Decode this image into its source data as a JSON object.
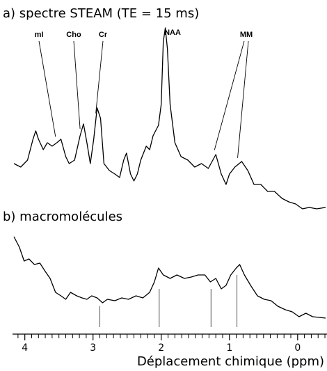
{
  "chart_data": [
    {
      "type": "line",
      "title": "a) spectre STEAM (TE = 15 ms)",
      "x": [
        4.16,
        4.06,
        3.96,
        3.88,
        3.84,
        3.8,
        3.73,
        3.67,
        3.6,
        3.53,
        3.47,
        3.4,
        3.35,
        3.27,
        3.19,
        3.14,
        3.09,
        3.04,
        2.99,
        2.94,
        2.89,
        2.84,
        2.76,
        2.68,
        2.61,
        2.55,
        2.51,
        2.45,
        2.4,
        2.35,
        2.3,
        2.22,
        2.17,
        2.12,
        2.04,
        2.0,
        1.97,
        1.94,
        1.91,
        1.87,
        1.8,
        1.71,
        1.61,
        1.51,
        1.41,
        1.31,
        1.2,
        1.12,
        1.05,
        1.0,
        0.92,
        0.82,
        0.73,
        0.64,
        0.54,
        0.44,
        0.34,
        0.23,
        0.13,
        0.03,
        -0.07,
        -0.17,
        -0.28,
        -0.41
      ],
      "values": [
        75,
        70,
        80,
        110,
        122,
        110,
        95,
        105,
        100,
        105,
        110,
        85,
        75,
        80,
        115,
        132,
        105,
        75,
        110,
        155,
        140,
        75,
        65,
        60,
        55,
        80,
        90,
        60,
        50,
        60,
        80,
        100,
        95,
        115,
        130,
        160,
        250,
        270,
        240,
        160,
        105,
        85,
        80,
        70,
        75,
        68,
        88,
        60,
        45,
        60,
        70,
        78,
        65,
        45,
        45,
        35,
        35,
        25,
        20,
        17,
        10,
        12,
        10,
        12
      ],
      "color": "#000000",
      "xlim": [
        4.16,
        -0.41
      ],
      "ylim": [
        0,
        270
      ],
      "annotations": [
        {
          "text": "mI",
          "x": [
            3.55
          ]
        },
        {
          "text": "Cho",
          "x": [
            3.19
          ]
        },
        {
          "text": "Cr",
          "x": [
            2.96
          ]
        },
        {
          "text": "NAA",
          "x": [
            1.94
          ]
        },
        {
          "text": "MM",
          "x": [
            1.22,
            0.88
          ]
        }
      ]
    },
    {
      "type": "line",
      "title": "b) macromolécules",
      "x": [
        4.16,
        4.08,
        4.01,
        3.94,
        3.86,
        3.78,
        3.7,
        3.63,
        3.55,
        3.47,
        3.4,
        3.33,
        3.24,
        3.16,
        3.09,
        3.02,
        2.94,
        2.86,
        2.79,
        2.68,
        2.58,
        2.48,
        2.37,
        2.27,
        2.17,
        2.1,
        2.04,
        1.97,
        1.87,
        1.77,
        1.66,
        1.56,
        1.46,
        1.36,
        1.28,
        1.2,
        1.12,
        1.05,
        0.98,
        0.9,
        0.85,
        0.78,
        0.69,
        0.59,
        0.49,
        0.39,
        0.29,
        0.18,
        0.08,
        -0.02,
        -0.12,
        -0.22,
        -0.41
      ],
      "values": [
        130,
        115,
        95,
        98,
        90,
        92,
        80,
        70,
        50,
        45,
        40,
        50,
        45,
        42,
        40,
        45,
        42,
        35,
        40,
        38,
        42,
        40,
        45,
        42,
        50,
        65,
        85,
        75,
        70,
        75,
        70,
        72,
        75,
        75,
        65,
        70,
        55,
        60,
        75,
        85,
        90,
        75,
        60,
        45,
        40,
        38,
        30,
        25,
        22,
        15,
        20,
        15,
        13
      ],
      "color": "#000000",
      "xlim": [
        4.16,
        -0.41
      ],
      "ylim": [
        0,
        130
      ],
      "markers": [
        2.9,
        2.03,
        1.27,
        0.89
      ],
      "xlabel": "Déplacement chimique (ppm)",
      "xticks": [
        4,
        3,
        2,
        1,
        0
      ],
      "xminorticks": [
        4.1,
        3.9,
        3.8,
        3.7,
        3.6,
        3.5,
        3.4,
        3.3,
        3.2,
        3.1,
        2.9,
        2.8,
        2.7,
        2.6,
        2.5,
        2.4,
        2.3,
        2.2,
        2.1,
        1.9,
        1.8,
        1.7,
        1.6,
        1.5,
        1.4,
        1.3,
        1.2,
        1.1,
        0.9,
        0.8,
        0.7,
        0.6,
        0.5,
        0.4,
        0.3,
        0.2,
        0.1,
        -0.1,
        -0.2,
        -0.3,
        -0.4
      ]
    }
  ]
}
